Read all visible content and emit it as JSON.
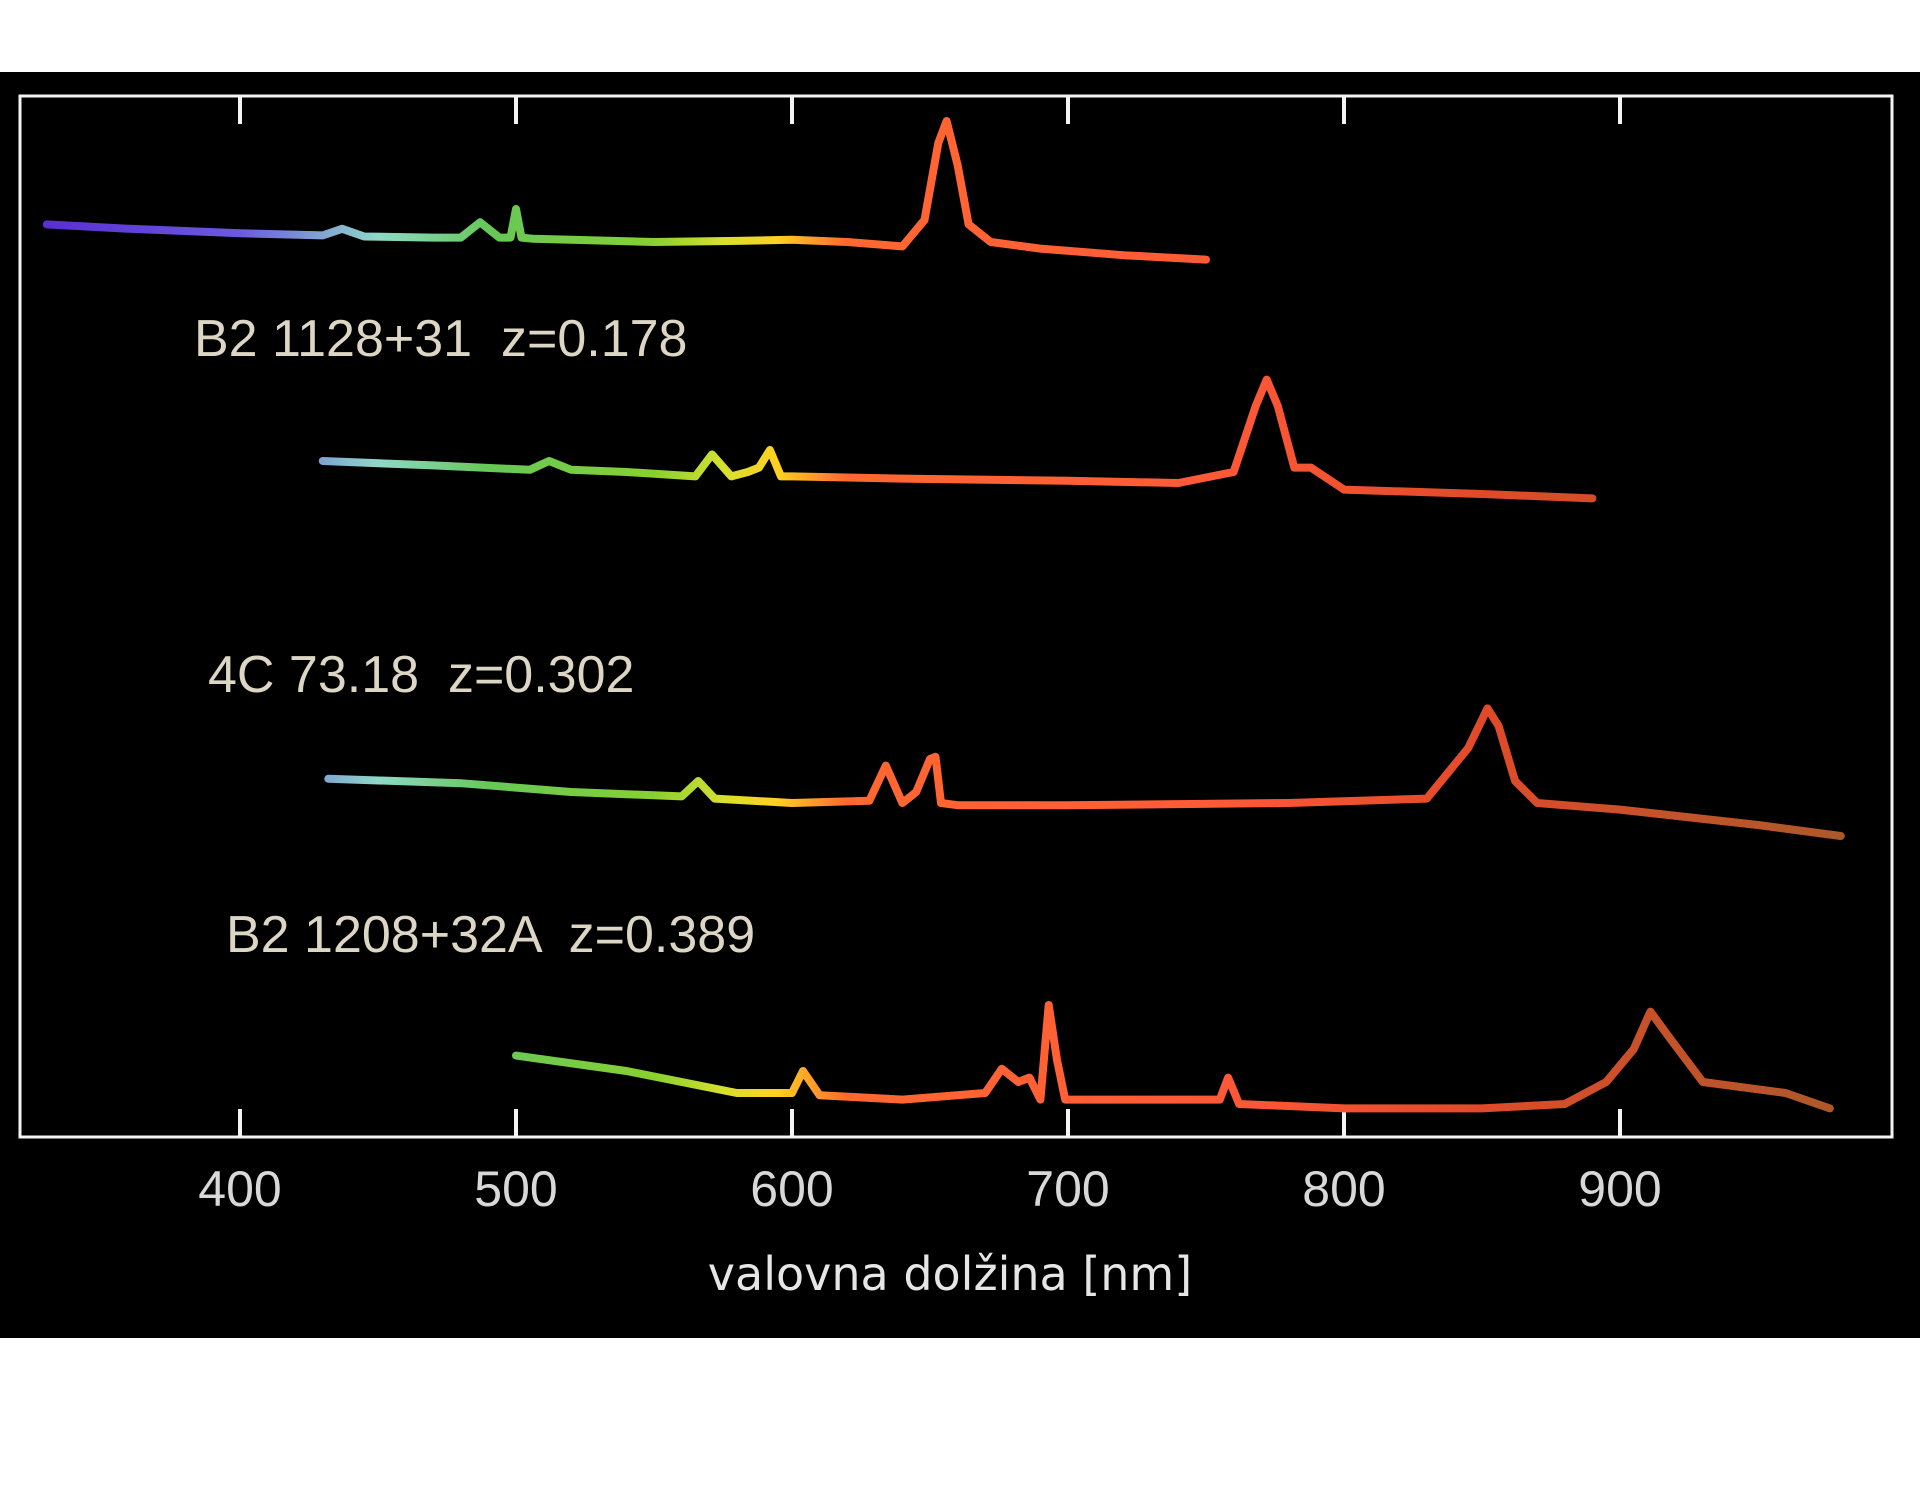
{
  "chart_data": {
    "type": "line",
    "title": "",
    "xlabel": "valovna dolžina [nm]",
    "ylabel": "",
    "xlim": [
      312,
      990
    ],
    "xticks": [
      400,
      500,
      600,
      700,
      800,
      900
    ],
    "tick_labels": [
      "400",
      "500",
      "600",
      "700",
      "800",
      "900"
    ],
    "grid": false,
    "series": [
      {
        "name": "B2 1128+31  z=0.178",
        "baseline_level": 1,
        "x": [
          330,
          360,
          400,
          430,
          437,
          445,
          470,
          480,
          487,
          494,
          498,
          500,
          502,
          506,
          520,
          550,
          580,
          600,
          620,
          640,
          648,
          653,
          656,
          660,
          664,
          672,
          690,
          720,
          750
        ],
        "y": [
          0.08,
          0.06,
          0.04,
          0.03,
          0.06,
          0.025,
          0.02,
          0.02,
          0.09,
          0.02,
          0.02,
          0.15,
          0.02,
          0.015,
          0.01,
          0.0,
          0.005,
          0.01,
          0.0,
          -0.02,
          0.1,
          0.45,
          0.55,
          0.35,
          0.08,
          0.0,
          -0.03,
          -0.06,
          -0.08
        ]
      },
      {
        "name": "4C 73.18  z=0.302",
        "baseline_level": 2,
        "x": [
          430,
          470,
          505,
          512,
          520,
          540,
          565,
          571,
          578,
          584,
          588,
          592,
          596,
          600,
          640,
          700,
          740,
          760,
          768,
          772,
          776,
          782,
          788,
          800,
          850,
          890
        ],
        "y": [
          0.05,
          0.03,
          0.01,
          0.05,
          0.01,
          0.0,
          -0.02,
          0.08,
          -0.02,
          0.0,
          0.02,
          0.1,
          -0.02,
          -0.02,
          -0.03,
          -0.04,
          -0.05,
          0.0,
          0.3,
          0.42,
          0.3,
          0.02,
          0.02,
          -0.08,
          -0.1,
          -0.12
        ]
      },
      {
        "name": "B2 1208+32A  z=0.389",
        "baseline_level": 3,
        "x": [
          432,
          480,
          520,
          560,
          566,
          572,
          600,
          628,
          634,
          640,
          645,
          650,
          652,
          654,
          660,
          700,
          780,
          830,
          845,
          852,
          856,
          862,
          870,
          900,
          950,
          980
        ],
        "y": [
          0.06,
          0.04,
          0.0,
          -0.02,
          0.05,
          -0.03,
          -0.05,
          -0.04,
          0.12,
          -0.05,
          0.0,
          0.15,
          0.16,
          -0.05,
          -0.06,
          -0.06,
          -0.05,
          -0.03,
          0.2,
          0.38,
          0.3,
          0.05,
          -0.05,
          -0.08,
          -0.15,
          -0.2
        ]
      },
      {
        "name": "",
        "baseline_level": 4,
        "x": [
          500,
          540,
          580,
          600,
          604,
          610,
          640,
          670,
          676,
          682,
          686,
          690,
          693,
          696,
          699,
          720,
          755,
          758,
          762,
          800,
          850,
          880,
          895,
          905,
          911,
          918,
          930,
          960,
          976
        ],
        "y": [
          0.12,
          0.05,
          -0.05,
          -0.05,
          0.05,
          -0.06,
          -0.08,
          -0.05,
          0.06,
          0.0,
          0.02,
          -0.08,
          0.35,
          0.1,
          -0.08,
          -0.08,
          -0.08,
          0.02,
          -0.1,
          -0.12,
          -0.12,
          -0.1,
          0.0,
          0.15,
          0.32,
          0.2,
          0.0,
          -0.05,
          -0.12
        ]
      }
    ],
    "color_scale": [
      {
        "wavelength": 330,
        "color": "#5a2fd0"
      },
      {
        "wavelength": 400,
        "color": "#6a5ae0"
      },
      {
        "wavelength": 450,
        "color": "#8fd8c8"
      },
      {
        "wavelength": 490,
        "color": "#66c858"
      },
      {
        "wavelength": 550,
        "color": "#88d030"
      },
      {
        "wavelength": 575,
        "color": "#d6e030"
      },
      {
        "wavelength": 595,
        "color": "#ffd020"
      },
      {
        "wavelength": 620,
        "color": "#ff6830"
      },
      {
        "wavelength": 750,
        "color": "#ff5a38"
      },
      {
        "wavelength": 850,
        "color": "#e04a2a"
      },
      {
        "wavelength": 990,
        "color": "#a85a2a"
      }
    ]
  }
}
